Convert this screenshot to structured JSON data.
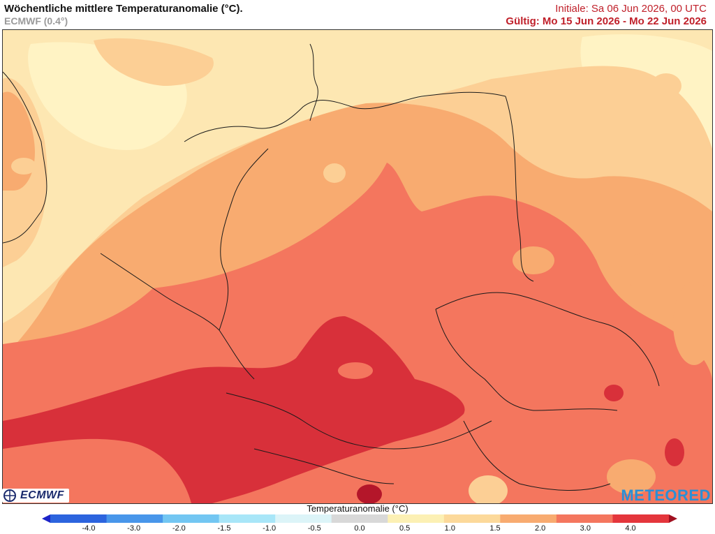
{
  "header": {
    "title": "Wöchentliche mittlere Temperaturanomalie (°C).",
    "model": "ECMWF (0.4°)",
    "initial": "Initiale: Sa 06 Jun 2026, 00 UTC",
    "valid": "Gültig: Mo 15 Jun 2026 - Mo 22 Jun 2026"
  },
  "colorbar": {
    "title": "Temperaturanomalie (°C)",
    "ticks": [
      "-4.0",
      "-3.0",
      "-2.0",
      "-1.5",
      "-1.0",
      "-0.5",
      "0.0",
      "0.5",
      "1.0",
      "1.5",
      "2.0",
      "3.0",
      "4.0"
    ],
    "colors": [
      "#1c24c8",
      "#2c64de",
      "#4896ea",
      "#72c6f2",
      "#a8e6f8",
      "#dcf4f8",
      "#d8d8d8",
      "#fcf0b4",
      "#fcd99a",
      "#f8ab70",
      "#f4765e",
      "#e4363c",
      "#a01020"
    ]
  },
  "logos": {
    "left": "ECMWF",
    "right": "METEORED"
  },
  "palette": {
    "anomaly_0_5_1_0": "#fde7b2",
    "anomaly_1_0_1_5": "#fccf95",
    "anomaly_1_5_2_0": "#f8ab70",
    "anomaly_2_0_3_0": "#f4765e",
    "anomaly_3_0_4_0": "#d8303a",
    "anomaly_4_0_plus": "#b4162a"
  }
}
